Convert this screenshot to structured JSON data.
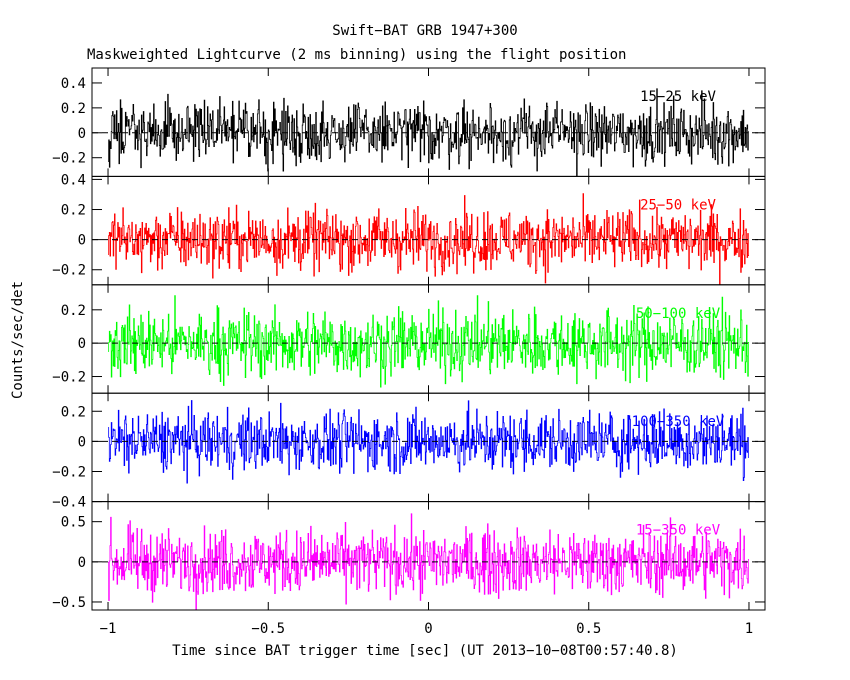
{
  "chart_data": {
    "type": "line",
    "title": "Swift−BAT GRB 1947+300",
    "subtitle": "Maskweighted Lightcurve (2 ms binning) using the flight position",
    "xlabel": "Time since BAT trigger time [sec] (UT 2013−10−08T00:57:40.8)",
    "ylabel": "Counts/sec/det",
    "xlim": [
      -1.05,
      1.05
    ],
    "x_ticks": [
      -1,
      -0.5,
      0,
      0.5,
      1
    ],
    "x_tick_labels": [
      "−1",
      "−0.5",
      "0",
      "0.5",
      "1"
    ],
    "bin_size_sec": 0.002,
    "series": [
      {
        "name": "15−25 keV",
        "color": "#000000",
        "ylim": [
          -0.35,
          0.52
        ],
        "yticks": [
          -0.2,
          0,
          0.2,
          0.4
        ],
        "ytick_labels": [
          "−0.2",
          "0",
          "0.2",
          "0.4"
        ],
        "noise_amplitude": 0.12,
        "x_start": -1.0,
        "x_end": 1.0
      },
      {
        "name": "25−50 keV",
        "color": "#ff0000",
        "ylim": [
          -0.3,
          0.42
        ],
        "yticks": [
          -0.2,
          0,
          0.2,
          0.4
        ],
        "ytick_labels": [
          "−0.2",
          "0",
          "0.2",
          "0.4"
        ],
        "noise_amplitude": 0.1,
        "x_start": -1.0,
        "x_end": 1.0
      },
      {
        "name": "50−100 keV",
        "color": "#00ff00",
        "ylim": [
          -0.3,
          0.35
        ],
        "yticks": [
          -0.2,
          0,
          0.2
        ],
        "ytick_labels": [
          "−0.2",
          "0",
          "0.2"
        ],
        "noise_amplitude": 0.1,
        "x_start": -1.0,
        "x_end": 1.0
      },
      {
        "name": "100−350 keV",
        "color": "#0000ff",
        "ylim": [
          -0.4,
          0.32
        ],
        "yticks": [
          -0.4,
          -0.2,
          0,
          0.2
        ],
        "ytick_labels": [
          "−0.4",
          "−0.2",
          "0",
          "0.2"
        ],
        "noise_amplitude": 0.1,
        "x_start": -1.0,
        "x_end": 1.0
      },
      {
        "name": "15−350 keV",
        "color": "#ff00ff",
        "ylim": [
          -0.6,
          0.75
        ],
        "yticks": [
          -0.5,
          0,
          0.5
        ],
        "ytick_labels": [
          "−0.5",
          "0",
          "0.5"
        ],
        "noise_amplitude": 0.2,
        "x_start": -1.0,
        "x_end": 1.0
      }
    ]
  }
}
